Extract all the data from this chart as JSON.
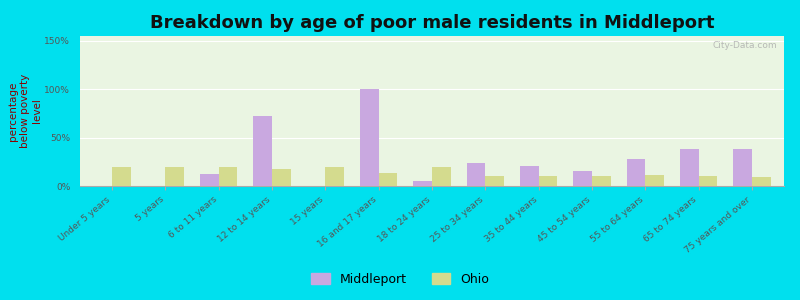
{
  "title": "Breakdown by age of poor male residents in Middleport",
  "ylabel": "percentage\nbelow poverty\nlevel",
  "categories": [
    "Under 5 years",
    "5 years",
    "6 to 11 years",
    "12 to 14 years",
    "15 years",
    "16 and 17 years",
    "18 to 24 years",
    "25 to 34 years",
    "35 to 44 years",
    "45 to 54 years",
    "55 to 64 years",
    "65 to 74 years",
    "75 years and over"
  ],
  "middleport": [
    0,
    0,
    12,
    72,
    0,
    100,
    5,
    24,
    21,
    16,
    28,
    38,
    38
  ],
  "ohio": [
    20,
    20,
    20,
    18,
    20,
    13,
    20,
    10,
    10,
    10,
    11,
    10,
    9
  ],
  "middleport_color": "#c9a8e0",
  "ohio_color": "#d4db8e",
  "outer_bg": "#00e0ee",
  "plot_bg": "#eaf5e2",
  "ylim": [
    0,
    155
  ],
  "yticks": [
    0,
    50,
    100,
    150
  ],
  "ytick_labels": [
    "0%",
    "50%",
    "100%",
    "150%"
  ],
  "bar_width": 0.35,
  "title_fontsize": 13,
  "ylabel_fontsize": 7.5,
  "tick_fontsize": 6.5,
  "legend_fontsize": 9,
  "watermark": "City-Data.com"
}
